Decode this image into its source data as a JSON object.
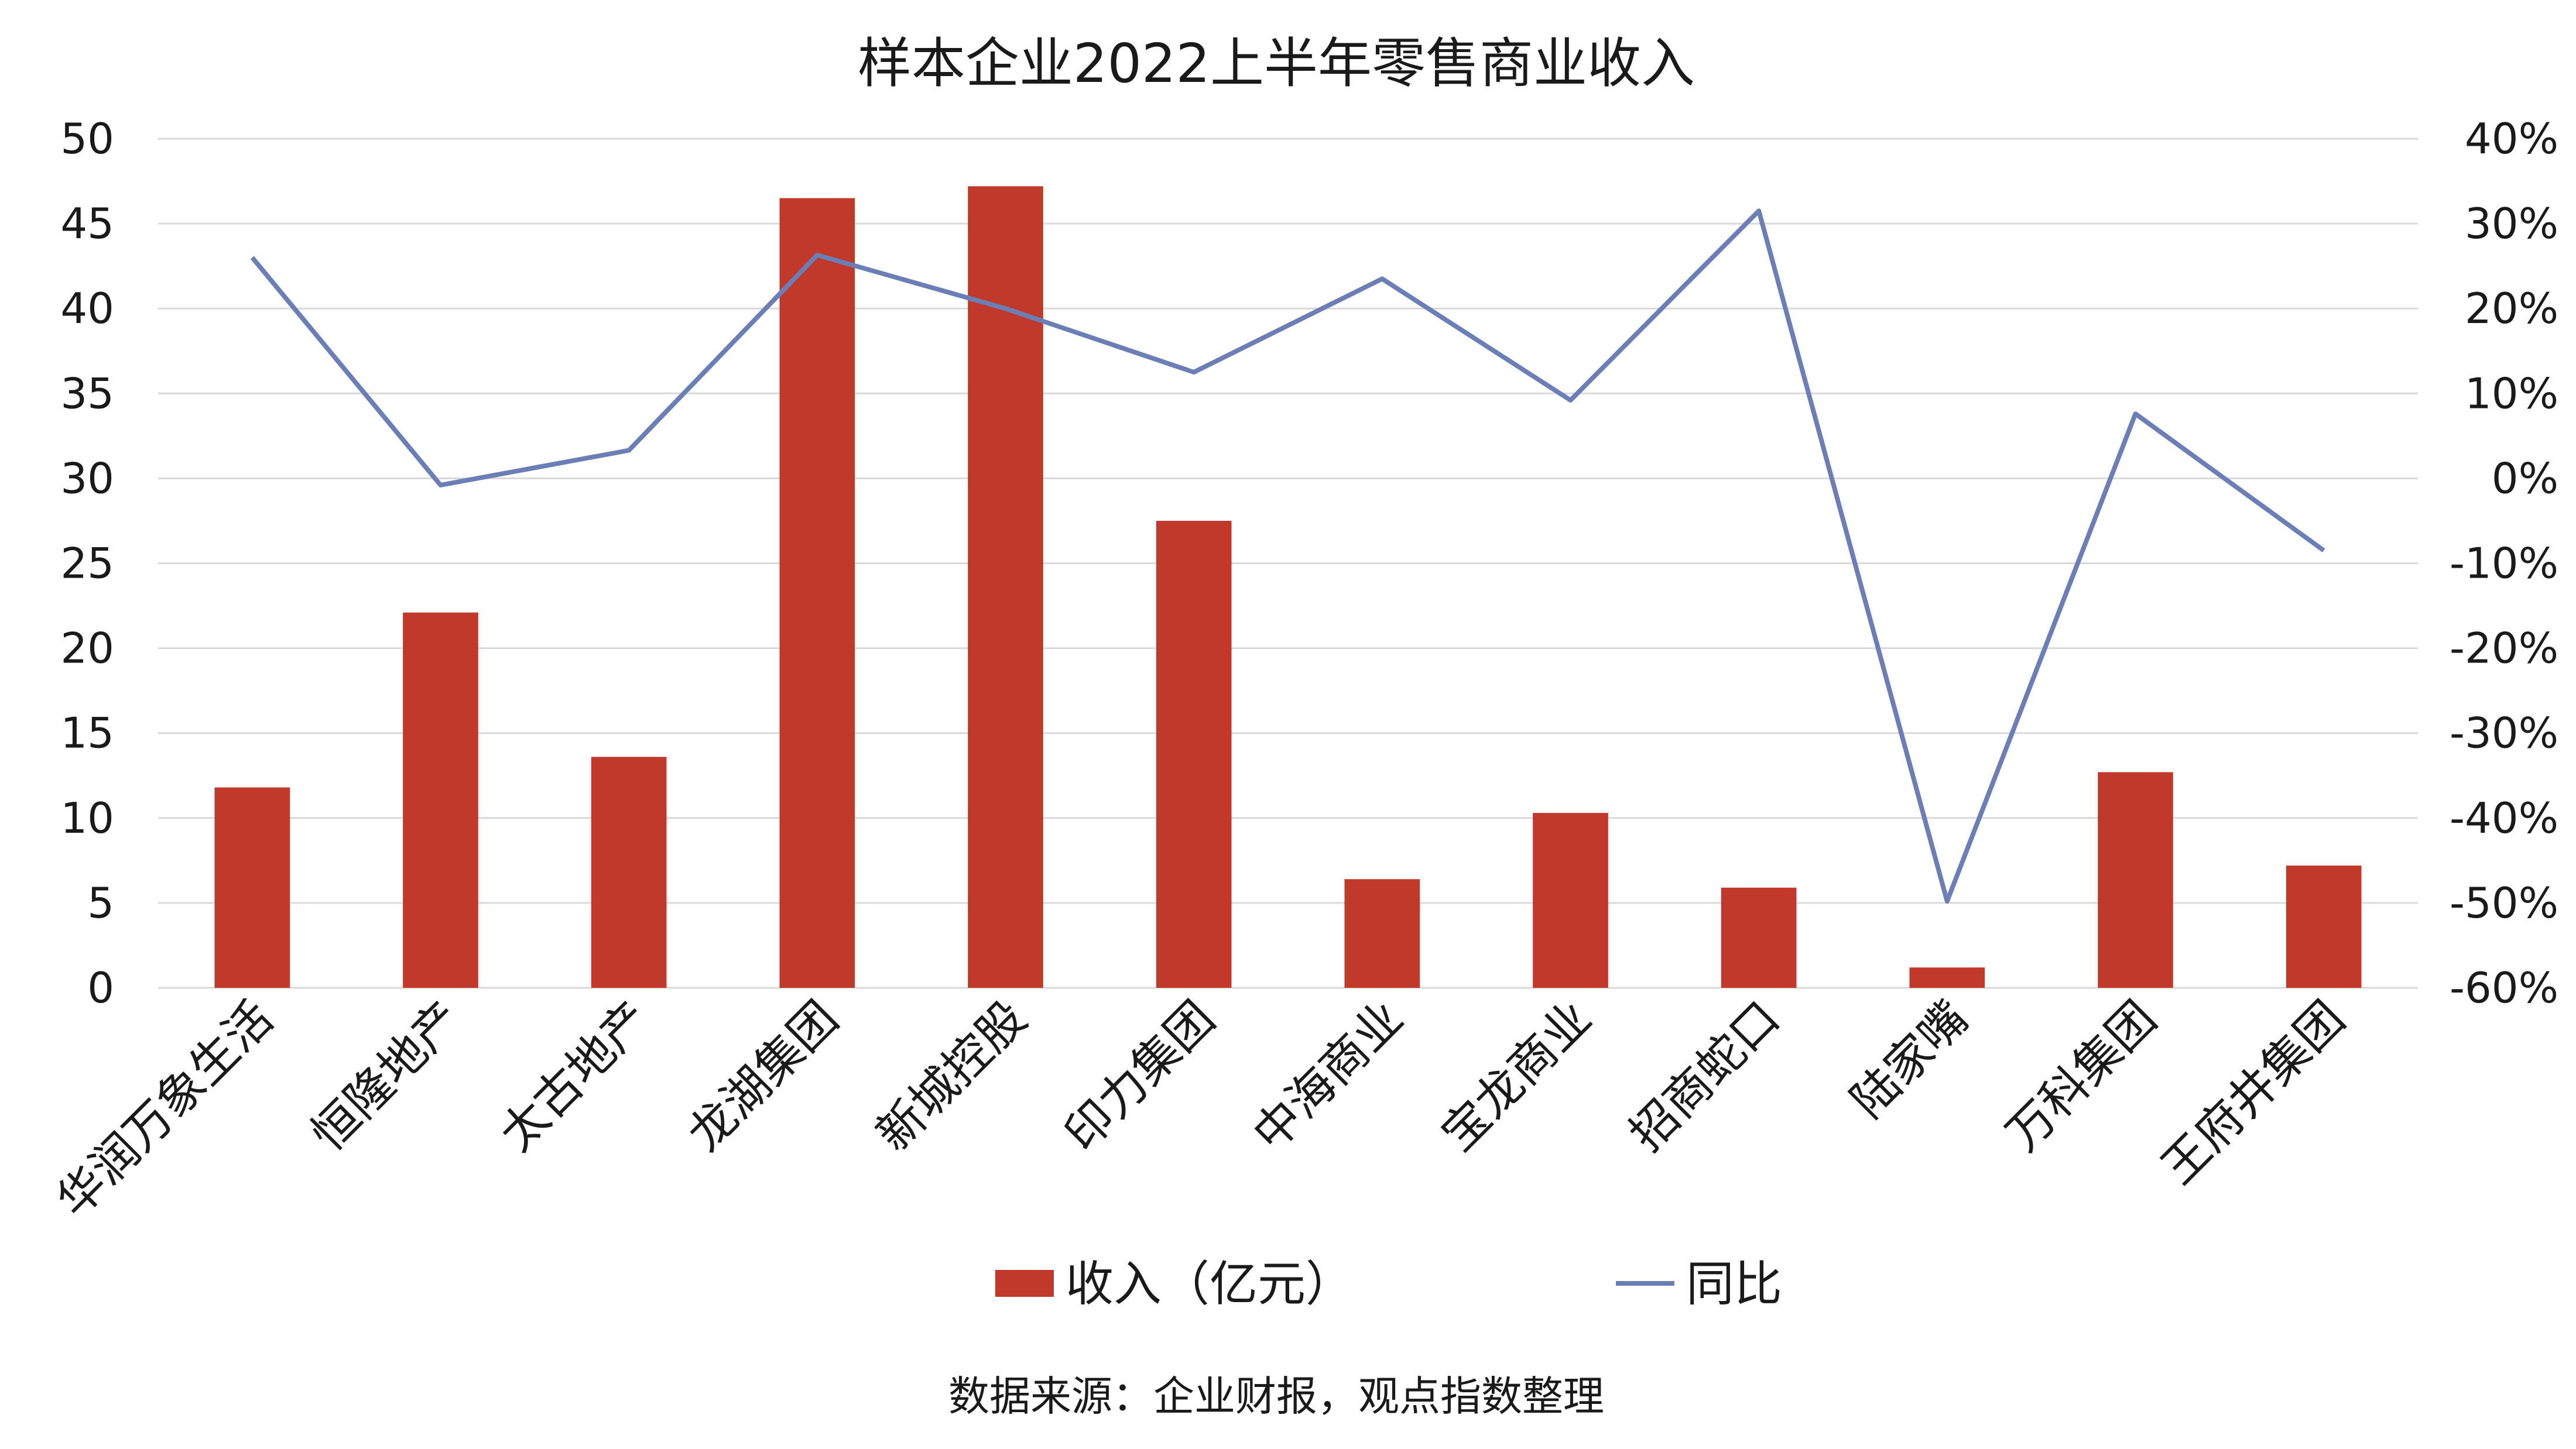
{
  "chart_data": {
    "type": "bar+line",
    "title": "样本企业2022上半年零售商业收入",
    "categories": [
      "华润万象生活",
      "恒隆地产",
      "太古地产",
      "龙湖集团",
      "新城控股",
      "印力集团",
      "中海商业",
      "宝龙商业",
      "招商蛇口",
      "陆家嘴",
      "万科集团",
      "王府井集团"
    ],
    "series": [
      {
        "name": "收入（亿元）",
        "kind": "bar",
        "axis": "left",
        "color": "#c0392b",
        "values": [
          11.8,
          22.1,
          13.6,
          46.5,
          47.2,
          27.5,
          6.4,
          10.3,
          5.9,
          1.2,
          12.7,
          7.2
        ]
      },
      {
        "name": "同比",
        "kind": "line",
        "axis": "right",
        "color": "#6b7fb6",
        "values": [
          26,
          -0.8,
          3.3,
          26.3,
          20,
          12.5,
          23.5,
          9.2,
          31.5,
          -49.8,
          7.6,
          -8.5
        ]
      }
    ],
    "y_left": {
      "min": 0,
      "max": 50,
      "ticks": [
        "0",
        "5",
        "10",
        "15",
        "20",
        "25",
        "30",
        "35",
        "40",
        "45",
        "50"
      ]
    },
    "y_right": {
      "min": -60,
      "max": 40,
      "ticks": [
        "-60%",
        "-50%",
        "-40%",
        "-30%",
        "-20%",
        "-10%",
        "0%",
        "10%",
        "20%",
        "30%",
        "40%"
      ]
    },
    "grid": true,
    "legend": "bottom"
  },
  "source_note": "数据来源：企业财报，观点指数整理"
}
